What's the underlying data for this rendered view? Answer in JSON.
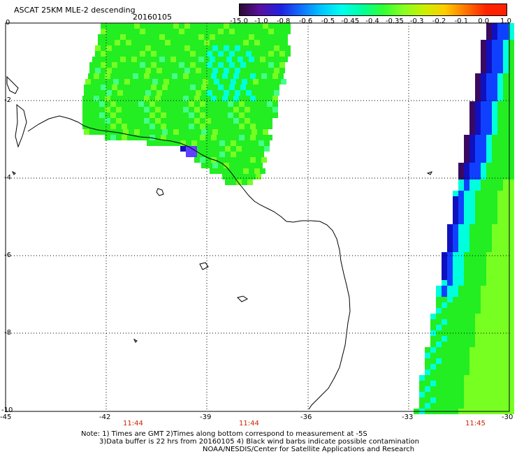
{
  "header": {
    "title": "ASCAT 25KM MLE-2 descending",
    "date": "20160105"
  },
  "colorbar": {
    "labels": [
      "-15.0",
      "-1.0",
      "-0.8",
      "-0.6",
      "-0.5",
      "-0.45",
      "-0.4",
      "-0.35",
      "-0.3",
      "-0.2",
      "-0.1",
      "0.0",
      "1.0"
    ],
    "colors": [
      "#2a0a33",
      "#5a10a0",
      "#2020e0",
      "#1070ff",
      "#00c8ff",
      "#00ffee",
      "#00ff99",
      "#33ff33",
      "#88ff22",
      "#ccf000",
      "#ffcc00",
      "#ff7700",
      "#ff2200"
    ]
  },
  "axes": {
    "lat_labels": [
      "0",
      "-2",
      "-4",
      "-6",
      "-8",
      "-10"
    ],
    "lon_labels": [
      "-45",
      "-42",
      "-39",
      "-36",
      "-33",
      "-30"
    ]
  },
  "times": [
    "11:44",
    "11:44",
    "11:45"
  ],
  "notes": [
    "Note: 1) Times are GMT 2)Times along bottom correspond to measurement at -5S",
    "3)Data buffer is 22 hrs from 20160105 4) Black wind barbs indicate possible contamination",
    "NOAA/NESDIS/Center for Satellite Applications and Research"
  ],
  "swath_colors": {
    "green": "#22ee22",
    "lime": "#77ff22",
    "cyan": "#00ffdd",
    "blue": "#1040ff",
    "navy": "#1010c0",
    "purple": "#3a0a60"
  }
}
